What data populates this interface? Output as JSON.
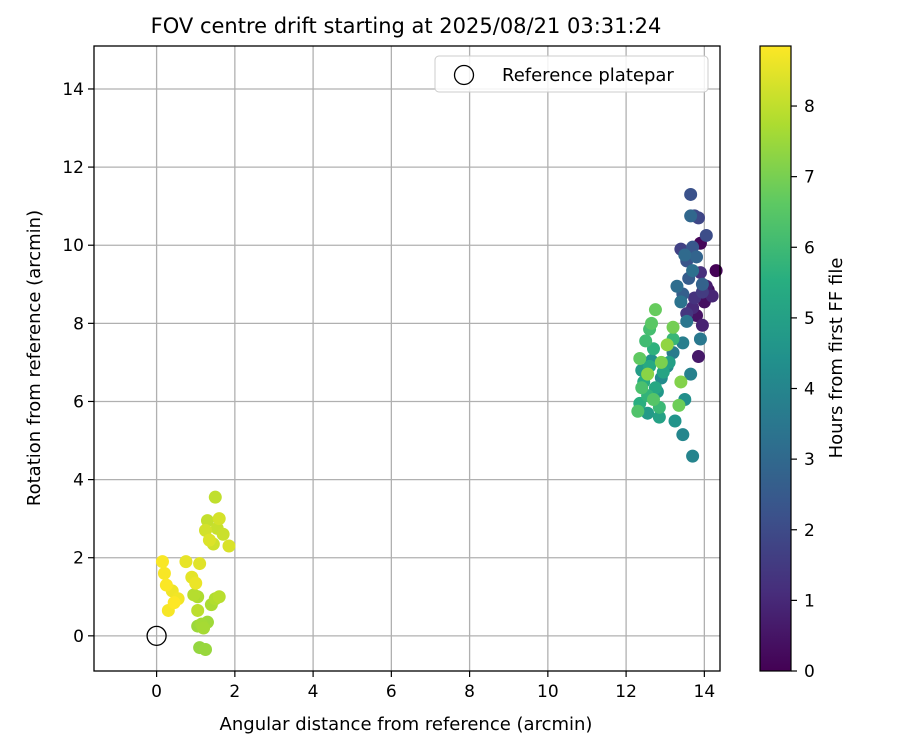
{
  "chart_data": {
    "type": "scatter",
    "title": "FOV centre drift starting at 2025/08/21 03:31:24",
    "xlabel": "Angular distance from reference (arcmin)",
    "ylabel": "Rotation from reference (arcmin)",
    "xlim": [
      -1.6,
      14.4
    ],
    "ylim": [
      -0.9,
      15.1
    ],
    "x_ticks": [
      0,
      2,
      4,
      6,
      8,
      10,
      12,
      14
    ],
    "y_ticks": [
      0,
      2,
      4,
      6,
      8,
      10,
      12,
      14
    ],
    "grid": true,
    "legend": {
      "placement": "top-right",
      "entries": [
        "Reference platepar"
      ]
    },
    "colorbar": {
      "label": "Hours from first FF file",
      "min": 0,
      "max": 8.85,
      "ticks": [
        0,
        1,
        2,
        3,
        4,
        5,
        6,
        7,
        8
      ],
      "colormap": "viridis"
    },
    "reference": {
      "x": 0,
      "y": 0,
      "label": "Reference platepar"
    },
    "points": [
      [
        14.3,
        9.35,
        0.05
      ],
      [
        13.9,
        10.05,
        0.15
      ],
      [
        14.1,
        8.85,
        0.25
      ],
      [
        14.0,
        8.55,
        0.35
      ],
      [
        13.8,
        8.2,
        0.45
      ],
      [
        13.85,
        7.15,
        0.6
      ],
      [
        14.05,
        8.95,
        0.7
      ],
      [
        13.95,
        7.95,
        0.85
      ],
      [
        14.2,
        8.7,
        0.95
      ],
      [
        13.7,
        8.4,
        1.05
      ],
      [
        13.9,
        9.3,
        1.2
      ],
      [
        13.75,
        8.65,
        1.3
      ],
      [
        13.55,
        8.25,
        1.4
      ],
      [
        13.95,
        8.8,
        1.55
      ],
      [
        13.4,
        9.9,
        1.7
      ],
      [
        13.85,
        10.7,
        1.85
      ],
      [
        13.75,
        10.75,
        1.95
      ],
      [
        14.05,
        10.25,
        2.05
      ],
      [
        13.65,
        11.3,
        2.2
      ],
      [
        13.55,
        9.6,
        2.3
      ],
      [
        13.7,
        9.95,
        2.4
      ],
      [
        13.6,
        9.15,
        2.55
      ],
      [
        13.45,
        8.75,
        2.65
      ],
      [
        13.95,
        9.0,
        2.75
      ],
      [
        13.8,
        9.7,
        2.85
      ],
      [
        13.65,
        10.75,
        2.95
      ],
      [
        13.5,
        9.75,
        3.05
      ],
      [
        13.3,
        8.95,
        3.15
      ],
      [
        13.7,
        9.35,
        3.25
      ],
      [
        13.4,
        8.55,
        3.35
      ],
      [
        13.55,
        8.05,
        3.45
      ],
      [
        13.9,
        7.6,
        3.55
      ],
      [
        13.2,
        7.25,
        3.65
      ],
      [
        13.45,
        7.5,
        3.75
      ],
      [
        13.65,
        6.7,
        3.85
      ],
      [
        13.7,
        4.6,
        3.95
      ],
      [
        13.45,
        5.15,
        4.05
      ],
      [
        13.05,
        6.9,
        4.15
      ],
      [
        12.9,
        6.6,
        4.25
      ],
      [
        13.5,
        6.05,
        4.35
      ],
      [
        12.65,
        7.05,
        4.45
      ],
      [
        13.25,
        5.5,
        4.55
      ],
      [
        12.8,
        6.25,
        4.65
      ],
      [
        12.55,
        5.7,
        4.75
      ],
      [
        12.4,
        6.8,
        4.85
      ],
      [
        13.1,
        7.0,
        4.95
      ],
      [
        12.85,
        5.6,
        5.05
      ],
      [
        12.95,
        6.75,
        5.15
      ],
      [
        12.75,
        6.35,
        5.25
      ],
      [
        12.6,
        6.9,
        5.35
      ],
      [
        12.45,
        6.5,
        5.45
      ],
      [
        12.35,
        5.95,
        5.55
      ],
      [
        12.7,
        7.35,
        5.65
      ],
      [
        12.55,
        6.15,
        5.75
      ],
      [
        13.2,
        7.6,
        5.85
      ],
      [
        12.85,
        5.85,
        5.95
      ],
      [
        12.5,
        7.55,
        6.05
      ],
      [
        12.6,
        7.85,
        6.15
      ],
      [
        12.4,
        6.35,
        6.25
      ],
      [
        12.3,
        5.75,
        6.35
      ],
      [
        12.7,
        6.05,
        6.45
      ],
      [
        12.65,
        8.0,
        6.55
      ],
      [
        12.35,
        7.1,
        6.65
      ],
      [
        12.75,
        8.35,
        6.75
      ],
      [
        13.35,
        5.9,
        6.85
      ],
      [
        13.2,
        7.9,
        6.95
      ],
      [
        12.9,
        7.0,
        7.05
      ],
      [
        13.4,
        6.5,
        7.15
      ],
      [
        12.55,
        6.7,
        7.25
      ],
      [
        13.05,
        7.45,
        7.35
      ],
      [
        1.1,
        -0.3,
        7.4
      ],
      [
        1.25,
        -0.35,
        7.45
      ],
      [
        1.05,
        0.25,
        7.5
      ],
      [
        1.3,
        0.35,
        7.55
      ],
      [
        1.15,
        0.3,
        7.6
      ],
      [
        1.2,
        0.2,
        7.65
      ],
      [
        1.4,
        0.8,
        7.7
      ],
      [
        1.05,
        1.0,
        7.75
      ],
      [
        1.5,
        0.95,
        7.8
      ],
      [
        0.95,
        1.05,
        7.85
      ],
      [
        1.6,
        1.0,
        7.9
      ],
      [
        1.05,
        0.65,
        7.95
      ],
      [
        1.5,
        3.55,
        8.0
      ],
      [
        1.3,
        2.95,
        8.05
      ],
      [
        1.55,
        2.75,
        8.1
      ],
      [
        1.7,
        2.6,
        8.15
      ],
      [
        1.45,
        2.35,
        8.2
      ],
      [
        1.25,
        2.7,
        8.25
      ],
      [
        1.6,
        3.0,
        8.3
      ],
      [
        1.85,
        2.3,
        8.35
      ],
      [
        1.35,
        2.45,
        8.4
      ],
      [
        1.1,
        1.85,
        8.45
      ],
      [
        0.9,
        1.5,
        8.5
      ],
      [
        0.75,
        1.9,
        8.55
      ],
      [
        1.0,
        1.35,
        8.6
      ],
      [
        0.4,
        1.15,
        8.65
      ],
      [
        0.55,
        0.95,
        8.7
      ],
      [
        0.3,
        0.65,
        8.75
      ],
      [
        0.2,
        1.6,
        8.78
      ],
      [
        0.15,
        1.9,
        8.8
      ],
      [
        0.25,
        1.3,
        8.82
      ],
      [
        0.45,
        0.85,
        8.85
      ]
    ]
  }
}
